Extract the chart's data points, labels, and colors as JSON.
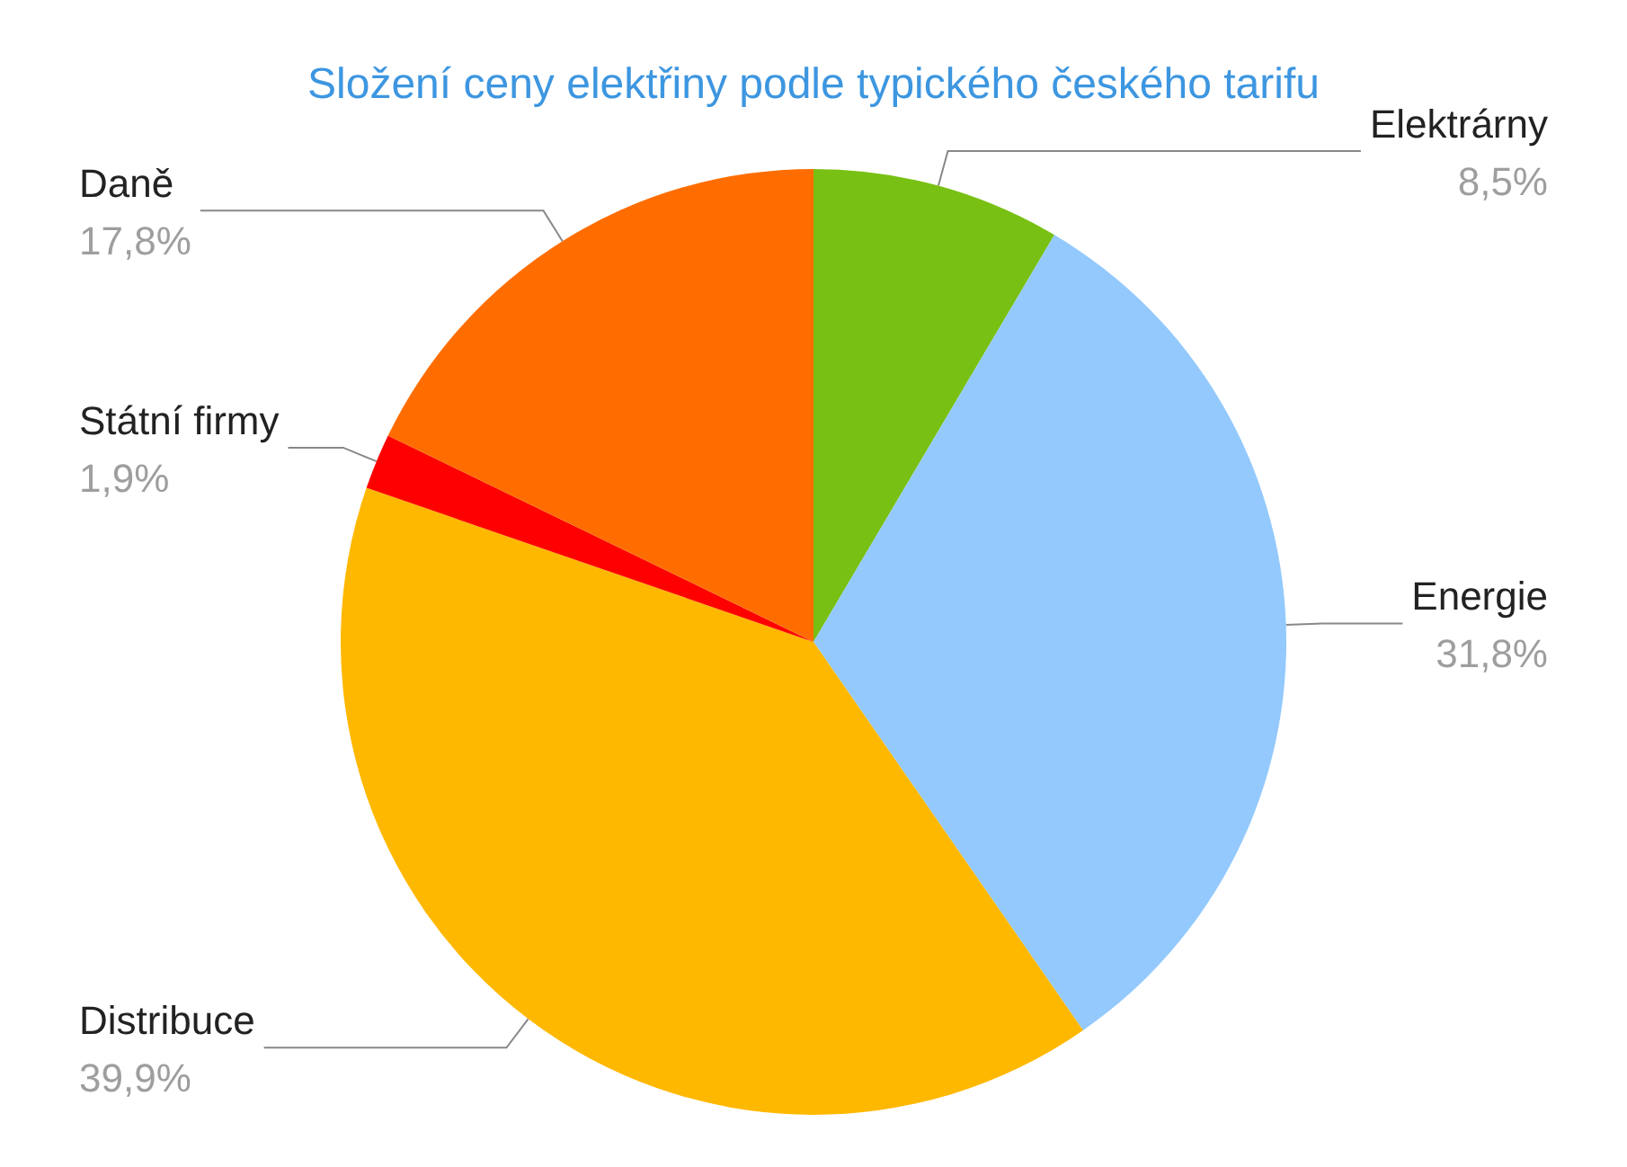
{
  "chart_data": {
    "type": "pie",
    "title": "Složení ceny elektřiny podle typického českého tarifu",
    "categories": [
      "Elektrárny",
      "Energie",
      "Distribuce",
      "Státní firmy",
      "Daně"
    ],
    "values": [
      8.5,
      31.8,
      39.9,
      1.9,
      17.8
    ],
    "value_labels": [
      "8,5%",
      "31,8%",
      "39,9%",
      "1,9%",
      "17,8%"
    ],
    "colors": [
      "#78c013",
      "#93c9fd",
      "#ffb800",
      "#ff0000",
      "#ff6d00"
    ],
    "legend": false
  }
}
